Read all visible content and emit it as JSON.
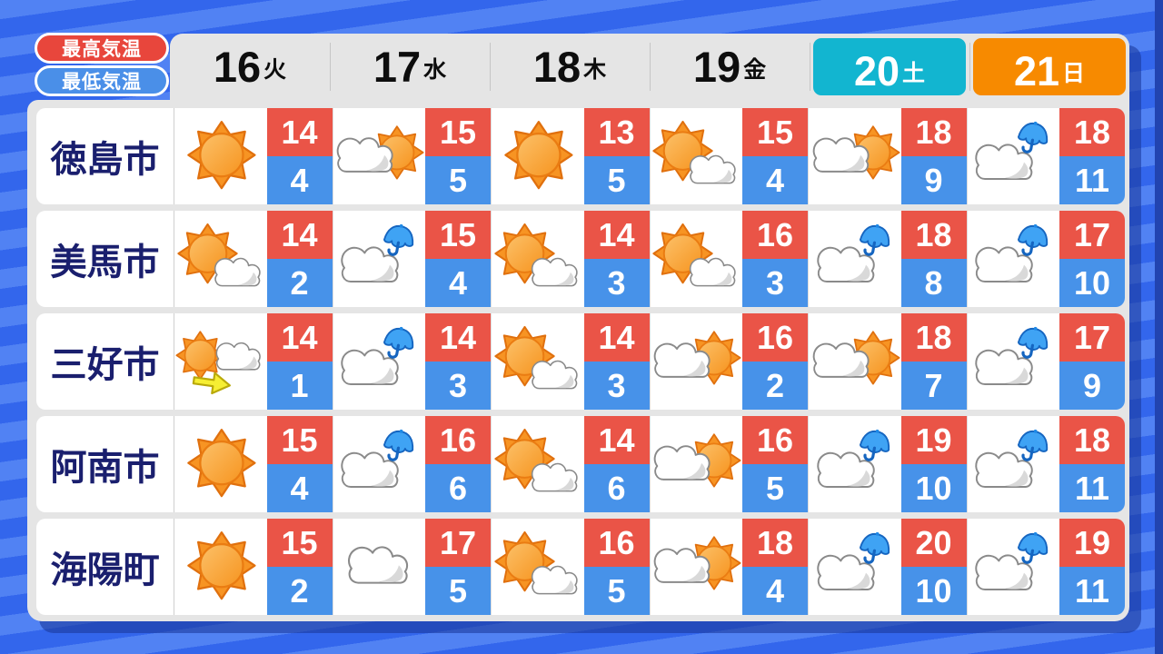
{
  "legend": {
    "high_label": "最高気温",
    "low_label": "最低気温"
  },
  "header": {
    "days": [
      {
        "date": "16",
        "dow": "火",
        "style": "plain"
      },
      {
        "date": "17",
        "dow": "水",
        "style": "plain"
      },
      {
        "date": "18",
        "dow": "木",
        "style": "plain"
      },
      {
        "date": "19",
        "dow": "金",
        "style": "plain"
      },
      {
        "date": "20",
        "dow": "土",
        "style": "saturday"
      },
      {
        "date": "21",
        "dow": "日",
        "style": "sunday"
      }
    ]
  },
  "chart_data": {
    "type": "table",
    "columns": [
      "16火",
      "17水",
      "18木",
      "19金",
      "20土",
      "21日"
    ],
    "legend": [
      "最高気温",
      "最低気温"
    ],
    "rows": [
      {
        "name": "徳島市",
        "high": [
          14,
          15,
          13,
          15,
          18,
          18
        ],
        "low": [
          4,
          5,
          5,
          4,
          9,
          11
        ],
        "weather": [
          "sunny",
          "cloud-sun",
          "sunny",
          "sun-cloud",
          "cloud-sun",
          "cloud-umbrella"
        ]
      },
      {
        "name": "美馬市",
        "high": [
          14,
          15,
          14,
          16,
          18,
          17
        ],
        "low": [
          2,
          4,
          3,
          3,
          8,
          10
        ],
        "weather": [
          "sun-cloud",
          "cloud-umbrella",
          "sun-cloud",
          "sun-cloud",
          "cloud-umbrella",
          "cloud-umbrella"
        ]
      },
      {
        "name": "三好市",
        "high": [
          14,
          14,
          14,
          16,
          18,
          17
        ],
        "low": [
          1,
          3,
          3,
          2,
          7,
          9
        ],
        "weather": [
          "sun-arrow-cloud",
          "cloud-umbrella",
          "sun-cloud",
          "cloud-sun",
          "cloud-sun",
          "cloud-umbrella"
        ]
      },
      {
        "name": "阿南市",
        "high": [
          15,
          16,
          14,
          16,
          19,
          18
        ],
        "low": [
          4,
          6,
          6,
          5,
          10,
          11
        ],
        "weather": [
          "sunny",
          "cloud-umbrella",
          "sun-cloud",
          "cloud-sun",
          "cloud-umbrella",
          "cloud-umbrella"
        ]
      },
      {
        "name": "海陽町",
        "high": [
          15,
          17,
          16,
          18,
          20,
          19
        ],
        "low": [
          2,
          5,
          5,
          4,
          10,
          11
        ],
        "weather": [
          "sunny",
          "cloud",
          "sun-cloud",
          "cloud-sun",
          "cloud-umbrella",
          "cloud-umbrella"
        ]
      }
    ]
  },
  "icons": {
    "sunny": "sun",
    "sun-cloud": "sun-with-cloud",
    "cloud-sun": "cloud-with-sun",
    "cloud": "cloud",
    "cloud-umbrella": "cloud-with-umbrella",
    "sun-arrow-cloud": "sun-then-cloud-arrow"
  },
  "colors": {
    "background_stripe_light": "#5182f3",
    "background_stripe_dark": "#3366ec",
    "panel_gray": "#e5e5e5",
    "row_white": "#ffffff",
    "high_red": "#ea5447",
    "low_blue": "#4792e9",
    "saturday_cyan": "#12b5d0",
    "sunday_orange": "#f78a00",
    "city_navy": "#1a1f6e",
    "legend_red": "#e8463c",
    "legend_blue": "#4a8fe8",
    "shadow_navy": "#183596"
  }
}
